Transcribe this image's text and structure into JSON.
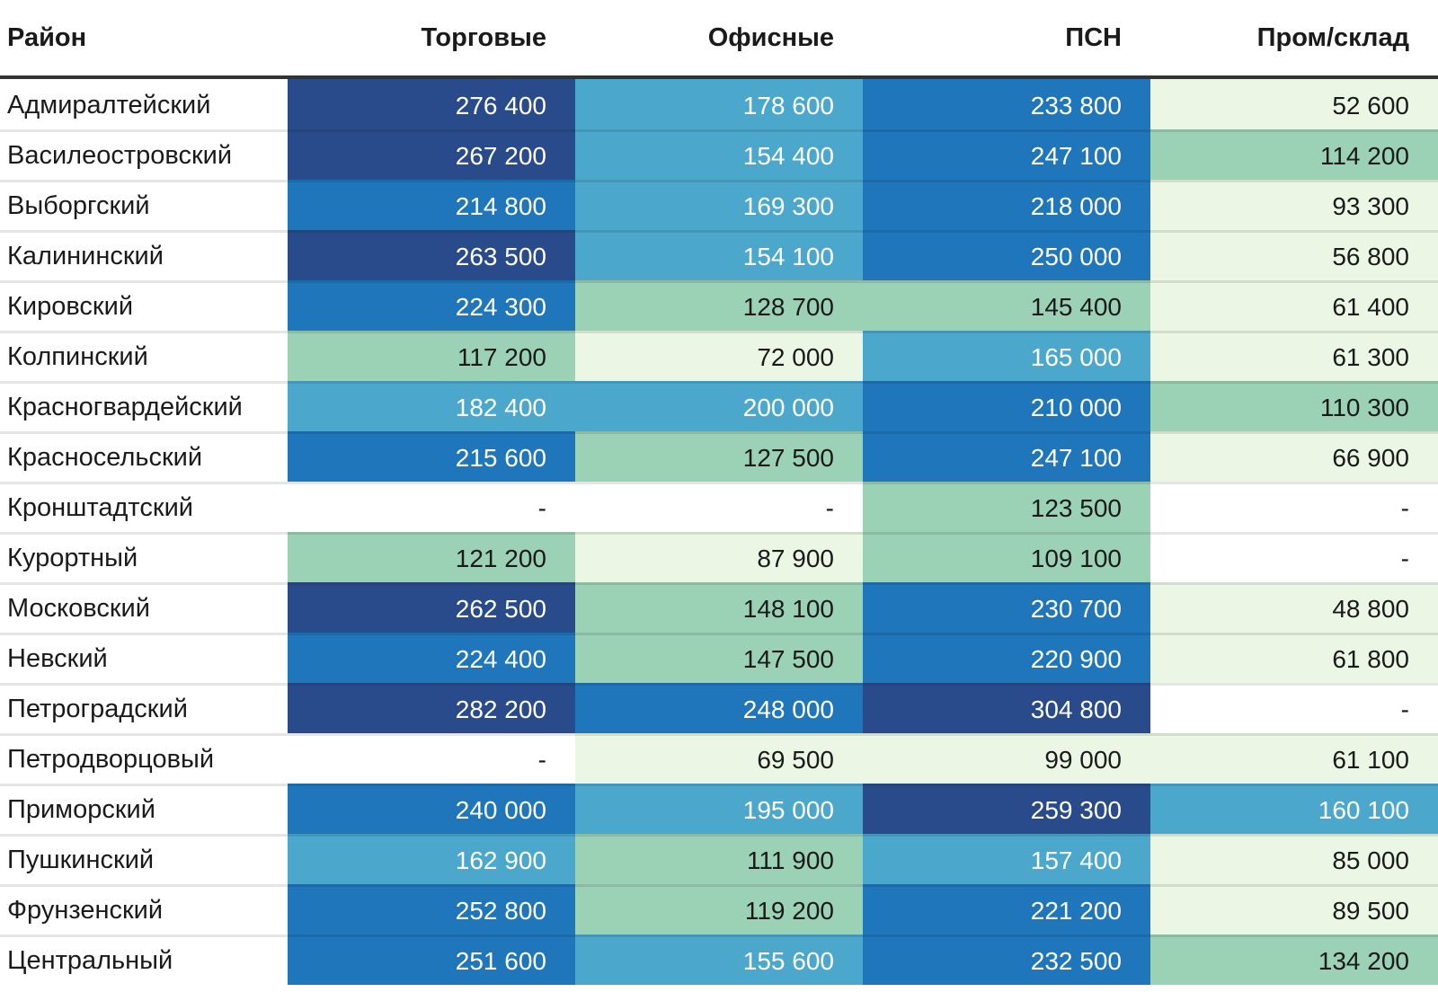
{
  "chart_data": {
    "type": "heatmap",
    "title": "",
    "row_label_header": "Район",
    "columns": [
      "Торговые",
      "Офисные",
      "ПСН",
      "Пром/склад"
    ],
    "rows": [
      "Адмиралтейский",
      "Василеостровский",
      "Выборгский",
      "Калининский",
      "Кировский",
      "Колпинский",
      "Красногвардейский",
      "Красносельский",
      "Кронштадтский",
      "Курортный",
      "Московский",
      "Невский",
      "Петроградский",
      "Петродворцовый",
      "Приморский",
      "Пушкинский",
      "Фрунзенский",
      "Центральный"
    ],
    "values": [
      [
        276400,
        178600,
        233800,
        52600
      ],
      [
        267200,
        154400,
        247100,
        114200
      ],
      [
        214800,
        169300,
        218000,
        93300
      ],
      [
        263500,
        154100,
        250000,
        56800
      ],
      [
        224300,
        128700,
        145400,
        61400
      ],
      [
        117200,
        72000,
        165000,
        61300
      ],
      [
        182400,
        200000,
        210000,
        110300
      ],
      [
        215600,
        127500,
        247100,
        66900
      ],
      [
        null,
        null,
        123500,
        null
      ],
      [
        121200,
        87900,
        109100,
        null
      ],
      [
        262500,
        148100,
        230700,
        48800
      ],
      [
        224400,
        147500,
        220900,
        61800
      ],
      [
        282200,
        248000,
        304800,
        null
      ],
      [
        null,
        69500,
        99000,
        61100
      ],
      [
        240000,
        195000,
        259300,
        160100
      ],
      [
        162900,
        111900,
        157400,
        85000
      ],
      [
        252800,
        119200,
        221200,
        89500
      ],
      [
        251600,
        155600,
        232500,
        134200
      ]
    ],
    "empty_placeholder": "-",
    "value_format": "space-thousands",
    "legend": "none",
    "grid": "row-separators",
    "color_bins": [
      {
        "upper": 105000,
        "bg": "#ebf6e5",
        "text": "#1a1a1a"
      },
      {
        "upper": 151000,
        "bg": "#9bd1b5",
        "text": "#1a1a1a"
      },
      {
        "upper": 205000,
        "bg": "#4ba8cc",
        "text": "#ffffff"
      },
      {
        "upper": 256000,
        "bg": "#1f76bb",
        "text": "#ffffff"
      },
      {
        "upper": null,
        "bg": "#2a4b8b",
        "text": "#ffffff"
      }
    ],
    "empty_cell": {
      "bg": "#ffffff",
      "text": "#1a1a1a"
    },
    "header_rule_color": "#333333",
    "row_separator_color": "rgba(0,0,0,0.10)"
  }
}
